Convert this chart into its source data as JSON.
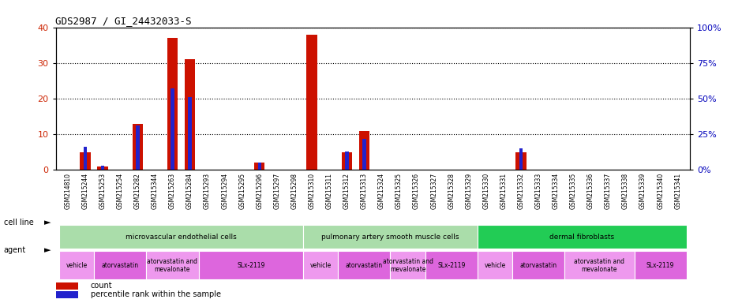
{
  "title": "GDS2987 / GI_24432033-S",
  "samples": [
    "GSM214810",
    "GSM215244",
    "GSM215253",
    "GSM215254",
    "GSM215282",
    "GSM215344",
    "GSM215263",
    "GSM215284",
    "GSM215293",
    "GSM215294",
    "GSM215295",
    "GSM215296",
    "GSM215297",
    "GSM215298",
    "GSM215310",
    "GSM215311",
    "GSM215312",
    "GSM215313",
    "GSM215324",
    "GSM215325",
    "GSM215326",
    "GSM215327",
    "GSM215328",
    "GSM215329",
    "GSM215330",
    "GSM215331",
    "GSM215332",
    "GSM215333",
    "GSM215334",
    "GSM215335",
    "GSM215336",
    "GSM215337",
    "GSM215338",
    "GSM215339",
    "GSM215340",
    "GSM215341"
  ],
  "count_values": [
    0,
    5,
    1,
    0,
    13,
    0,
    37,
    31,
    0,
    0,
    0,
    2,
    0,
    0,
    38,
    0,
    5,
    11,
    0,
    0,
    0,
    0,
    0,
    0,
    0,
    0,
    5,
    0,
    0,
    0,
    0,
    0,
    0,
    0,
    0,
    0
  ],
  "percentile_values": [
    0,
    16,
    3,
    0,
    31,
    0,
    57,
    51,
    0,
    0,
    0,
    5,
    0,
    0,
    0,
    0,
    13,
    22,
    0,
    0,
    0,
    0,
    0,
    0,
    0,
    0,
    15,
    0,
    0,
    0,
    0,
    0,
    0,
    0,
    0,
    0
  ],
  "ylim_left": [
    0,
    40
  ],
  "ylim_right": [
    0,
    100
  ],
  "yticks_left": [
    0,
    10,
    20,
    30,
    40
  ],
  "yticks_right": [
    0,
    25,
    50,
    75,
    100
  ],
  "cell_line_groups": [
    {
      "label": "microvascular endothelial cells",
      "start": 0,
      "end": 14,
      "color": "#aaddaa"
    },
    {
      "label": "pulmonary artery smooth muscle cells",
      "start": 14,
      "end": 24,
      "color": "#aaddaa"
    },
    {
      "label": "dermal fibroblasts",
      "start": 24,
      "end": 36,
      "color": "#22cc55"
    }
  ],
  "agent_groups": [
    {
      "label": "vehicle",
      "start": 0,
      "end": 2,
      "color": "#ee99ee"
    },
    {
      "label": "atorvastatin",
      "start": 2,
      "end": 5,
      "color": "#dd66dd"
    },
    {
      "label": "atorvastatin and\nmevalonate",
      "start": 5,
      "end": 8,
      "color": "#ee99ee"
    },
    {
      "label": "SLx-2119",
      "start": 8,
      "end": 14,
      "color": "#dd66dd"
    },
    {
      "label": "vehicle",
      "start": 14,
      "end": 16,
      "color": "#ee99ee"
    },
    {
      "label": "atorvastatin",
      "start": 16,
      "end": 19,
      "color": "#dd66dd"
    },
    {
      "label": "atorvastatin and\nmevalonate",
      "start": 19,
      "end": 21,
      "color": "#ee99ee"
    },
    {
      "label": "SLx-2119",
      "start": 21,
      "end": 24,
      "color": "#dd66dd"
    },
    {
      "label": "vehicle",
      "start": 24,
      "end": 26,
      "color": "#ee99ee"
    },
    {
      "label": "atorvastatin",
      "start": 26,
      "end": 29,
      "color": "#dd66dd"
    },
    {
      "label": "atorvastatin and\nmevalonate",
      "start": 29,
      "end": 33,
      "color": "#ee99ee"
    },
    {
      "label": "SLx-2119",
      "start": 33,
      "end": 36,
      "color": "#dd66dd"
    }
  ],
  "bar_color": "#cc1100",
  "blue_color": "#2222cc",
  "bg_color": "#ffffff",
  "label_color_left": "#cc2200",
  "label_color_right": "#0000bb"
}
